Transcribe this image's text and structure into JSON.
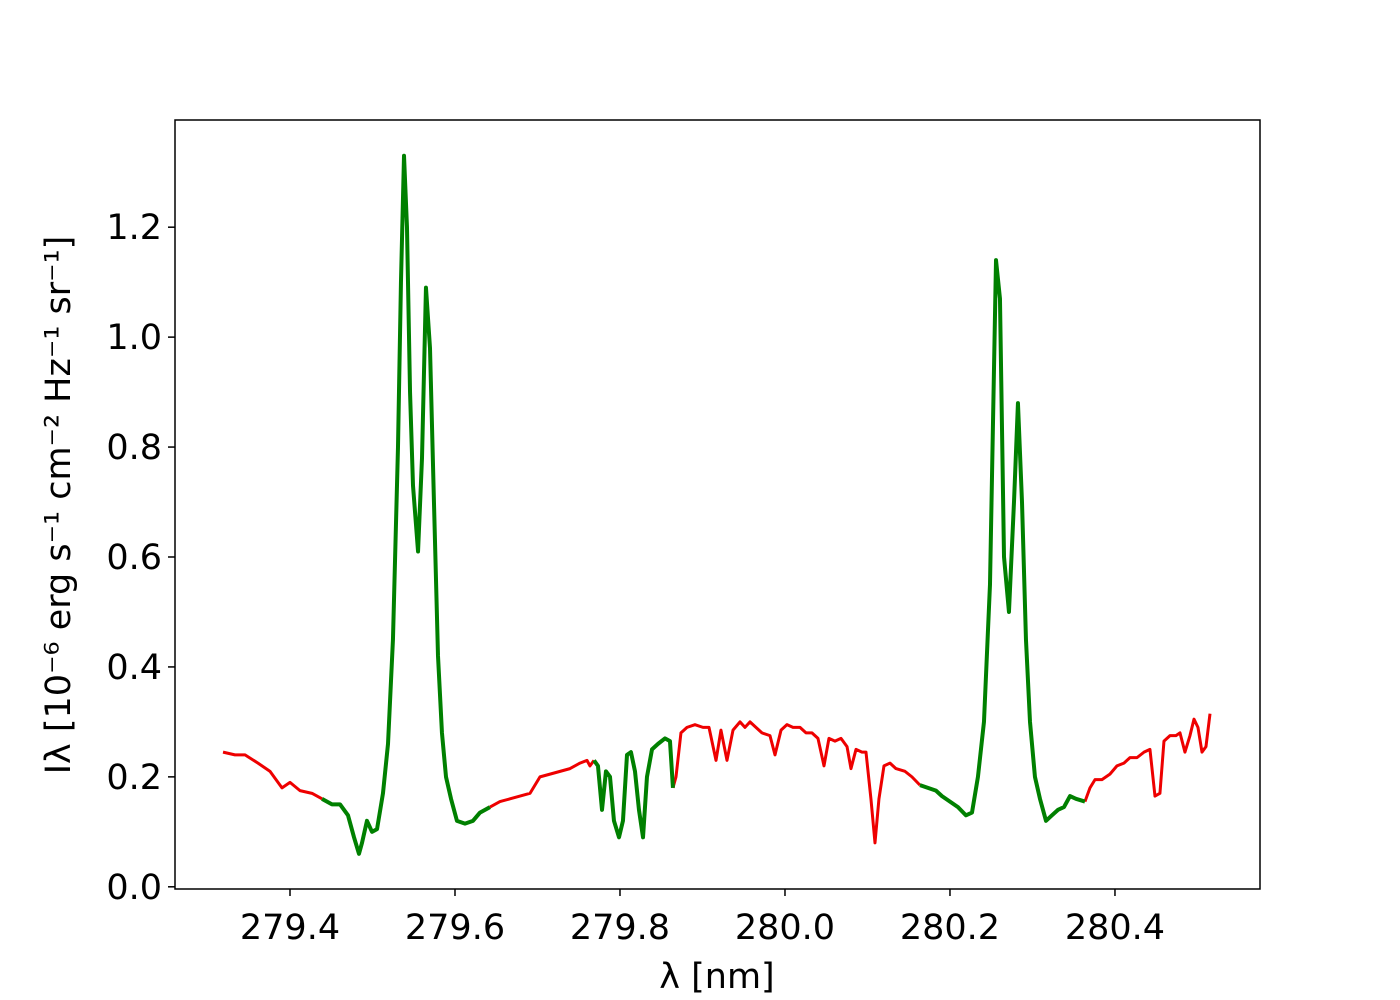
{
  "chart_data": {
    "type": "line",
    "xlabel": "λ [nm]",
    "ylabel": "Iλ [10⁻⁶ erg s⁻¹ cm⁻² Hz⁻¹ sr⁻¹]",
    "x": [
      279.3188,
      279.3333,
      279.3455,
      279.3612,
      279.3758,
      279.3903,
      279.4,
      279.4121,
      279.4267,
      279.4388,
      279.4509,
      279.4606,
      279.4703,
      279.4776,
      279.4836,
      279.4873,
      279.4933,
      279.4994,
      279.5055,
      279.5127,
      279.5188,
      279.5248,
      279.5309,
      279.5345,
      279.5382,
      279.5418,
      279.5455,
      279.5491,
      279.5552,
      279.56,
      279.5648,
      279.5697,
      279.5745,
      279.5794,
      279.5842,
      279.5891,
      279.5952,
      279.6024,
      279.6121,
      279.6218,
      279.6303,
      279.6424,
      279.6545,
      279.6667,
      279.6788,
      279.6909,
      279.703,
      279.7152,
      279.7273,
      279.7394,
      279.7515,
      279.76,
      279.7636,
      279.7685,
      279.7733,
      279.7782,
      279.783,
      279.7879,
      279.7927,
      279.7988,
      279.8036,
      279.8085,
      279.8133,
      279.8182,
      279.823,
      279.8279,
      279.8327,
      279.8388,
      279.8461,
      279.8545,
      279.8606,
      279.8642,
      279.8679,
      279.8739,
      279.8812,
      279.8909,
      279.9006,
      279.9079,
      279.9164,
      279.9224,
      279.9297,
      279.937,
      279.9455,
      279.9515,
      279.9576,
      279.9648,
      279.9721,
      279.9818,
      279.9879,
      279.9952,
      280.0024,
      280.0097,
      280.0182,
      280.0255,
      280.0327,
      280.04,
      280.0473,
      280.0533,
      280.0606,
      280.0679,
      280.0752,
      280.08,
      280.0861,
      280.0933,
      280.0982,
      280.1042,
      280.1091,
      280.1139,
      280.12,
      280.1273,
      280.1345,
      280.1455,
      280.1539,
      280.1636,
      280.1733,
      280.183,
      280.1903,
      280.2,
      280.2097,
      280.2194,
      280.2267,
      280.2339,
      280.2412,
      280.2485,
      280.2558,
      280.2606,
      280.2655,
      280.2715,
      280.2776,
      280.2824,
      280.2873,
      280.2921,
      280.297,
      280.303,
      280.3091,
      280.3164,
      280.3236,
      280.3309,
      280.3382,
      280.3455,
      280.3527,
      280.3636,
      280.3697,
      280.3758,
      280.3842,
      280.3939,
      280.4024,
      280.4109,
      280.4182,
      280.4267,
      280.4352,
      280.4424,
      280.4485,
      280.4545,
      280.4594,
      280.4667,
      280.4739,
      280.4788,
      280.4848,
      280.4909,
      280.4958,
      280.5006,
      280.5055,
      280.5103,
      280.5152
    ],
    "series": [
      {
        "color": "#ee0000",
        "values": [
          0.245,
          0.24,
          0.24,
          0.225,
          0.21,
          0.18,
          0.19,
          0.175,
          0.17,
          0.16,
          null,
          null,
          null,
          null,
          null,
          null,
          null,
          null,
          null,
          null,
          null,
          null,
          null,
          null,
          null,
          null,
          null,
          null,
          null,
          null,
          null,
          null,
          null,
          null,
          null,
          null,
          null,
          null,
          null,
          null,
          null,
          0.145,
          0.155,
          0.16,
          0.165,
          0.17,
          0.2,
          0.205,
          0.21,
          0.215,
          0.225,
          0.23,
          0.22,
          0.23,
          null,
          null,
          null,
          null,
          null,
          null,
          null,
          null,
          null,
          null,
          null,
          null,
          null,
          null,
          null,
          null,
          null,
          0.18,
          0.2,
          0.28,
          0.29,
          0.295,
          0.29,
          0.29,
          0.23,
          0.285,
          0.23,
          0.285,
          0.3,
          0.29,
          0.3,
          0.29,
          0.28,
          0.275,
          0.24,
          0.285,
          0.295,
          0.29,
          0.29,
          0.28,
          0.28,
          0.27,
          0.22,
          0.27,
          0.265,
          0.27,
          0.255,
          0.215,
          0.25,
          0.245,
          0.245,
          0.16,
          0.08,
          0.16,
          0.22,
          0.225,
          0.215,
          0.21,
          0.2,
          0.185,
          null,
          null,
          null,
          null,
          null,
          null,
          null,
          null,
          null,
          null,
          null,
          null,
          null,
          null,
          null,
          null,
          null,
          null,
          null,
          null,
          null,
          null,
          null,
          null,
          null,
          null,
          null,
          0.155,
          0.18,
          0.195,
          0.195,
          0.205,
          0.22,
          0.225,
          0.235,
          0.235,
          0.245,
          0.25,
          0.165,
          0.17,
          0.265,
          0.275,
          0.275,
          0.28,
          0.245,
          0.275,
          0.305,
          0.29,
          0.245,
          0.255,
          0.315
        ]
      },
      {
        "color": "#008000",
        "values": [
          null,
          null,
          null,
          null,
          null,
          null,
          null,
          null,
          null,
          0.16,
          0.15,
          0.15,
          0.13,
          0.09,
          0.06,
          0.08,
          0.12,
          0.1,
          0.105,
          0.17,
          0.26,
          0.45,
          0.8,
          1.1,
          1.33,
          1.2,
          0.9,
          0.73,
          0.61,
          0.78,
          1.09,
          0.98,
          0.7,
          0.42,
          0.28,
          0.2,
          0.16,
          0.12,
          0.115,
          0.12,
          0.135,
          0.145,
          null,
          null,
          null,
          null,
          null,
          null,
          null,
          null,
          null,
          null,
          null,
          0.23,
          0.22,
          0.14,
          0.21,
          0.2,
          0.12,
          0.09,
          0.12,
          0.24,
          0.245,
          0.21,
          0.14,
          0.09,
          0.2,
          0.25,
          0.26,
          0.27,
          0.265,
          0.18,
          null,
          null,
          null,
          null,
          null,
          null,
          null,
          null,
          null,
          null,
          null,
          null,
          null,
          null,
          null,
          null,
          null,
          null,
          null,
          null,
          null,
          null,
          null,
          null,
          null,
          null,
          null,
          null,
          null,
          null,
          null,
          null,
          null,
          null,
          null,
          null,
          null,
          null,
          null,
          null,
          null,
          0.185,
          0.18,
          0.175,
          0.165,
          0.155,
          0.145,
          0.13,
          0.135,
          0.2,
          0.3,
          0.55,
          1.14,
          1.07,
          0.6,
          0.5,
          0.7,
          0.88,
          0.7,
          0.45,
          0.3,
          0.2,
          0.16,
          0.12,
          0.13,
          0.14,
          0.145,
          0.165,
          0.16,
          0.155,
          null,
          null,
          null,
          null,
          null,
          null,
          null,
          null,
          null,
          null,
          null,
          null,
          null,
          null,
          null,
          null,
          null,
          null,
          null,
          null,
          null,
          null,
          null
        ]
      }
    ],
    "xlim": [
      279.2606,
      280.5758
    ],
    "ylim": [
      -0.004,
      1.395
    ],
    "xticks": [
      279.4,
      279.6,
      279.8,
      {
        "value": 280,
        "label": "280.0"
      },
      280.2,
      280.4
    ],
    "yticks": [
      {
        "value": 0,
        "label": "0.0"
      },
      0.2,
      0.4,
      0.6,
      0.8,
      {
        "value": 1,
        "label": "1.0"
      },
      1.2
    ]
  }
}
